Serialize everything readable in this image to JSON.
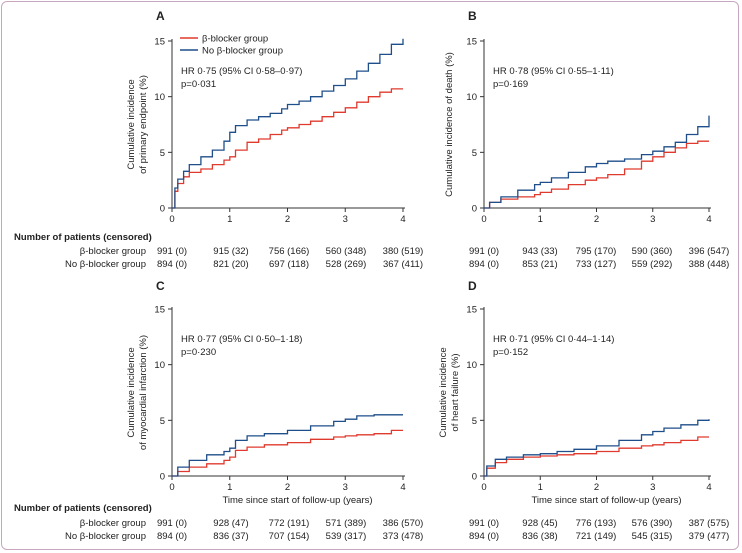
{
  "panels": [
    {
      "letter": "A",
      "ylabel": [
        "Cumulative incidence",
        "of primary endpoint (%)"
      ],
      "stat_lines": [
        "HR 0·75 (95% CI 0·58–0·97)",
        "p=0·031"
      ],
      "xlabel": "",
      "chart_data": {
        "type": "line",
        "xlim": [
          0,
          4
        ],
        "ylim": [
          0,
          15
        ],
        "xticks": [
          0,
          1,
          2,
          3,
          4
        ],
        "yticks": [
          0,
          5,
          10,
          15
        ],
        "series": [
          {
            "name": "β-blocker group",
            "color": "#e03a2f",
            "points": [
              [
                0,
                0
              ],
              [
                0.05,
                1.5
              ],
              [
                0.1,
                2.2
              ],
              [
                0.2,
                2.8
              ],
              [
                0.3,
                3.2
              ],
              [
                0.5,
                3.5
              ],
              [
                0.7,
                3.9
              ],
              [
                0.9,
                4.3
              ],
              [
                1.0,
                4.6
              ],
              [
                1.1,
                5.2
              ],
              [
                1.3,
                5.9
              ],
              [
                1.5,
                6.2
              ],
              [
                1.7,
                6.6
              ],
              [
                1.9,
                7.0
              ],
              [
                2.0,
                7.2
              ],
              [
                2.2,
                7.5
              ],
              [
                2.4,
                7.8
              ],
              [
                2.6,
                8.2
              ],
              [
                2.8,
                8.6
              ],
              [
                3.0,
                9.0
              ],
              [
                3.2,
                9.5
              ],
              [
                3.4,
                10.0
              ],
              [
                3.6,
                10.4
              ],
              [
                3.8,
                10.7
              ],
              [
                4.0,
                10.7
              ]
            ]
          },
          {
            "name": "No β-blocker group",
            "color": "#1f4f8a",
            "points": [
              [
                0,
                0
              ],
              [
                0.05,
                1.8
              ],
              [
                0.1,
                2.6
              ],
              [
                0.2,
                3.3
              ],
              [
                0.3,
                3.9
              ],
              [
                0.5,
                4.6
              ],
              [
                0.7,
                5.2
              ],
              [
                0.9,
                6.0
              ],
              [
                1.0,
                6.8
              ],
              [
                1.1,
                7.4
              ],
              [
                1.3,
                7.9
              ],
              [
                1.5,
                8.2
              ],
              [
                1.7,
                8.5
              ],
              [
                1.9,
                8.9
              ],
              [
                2.0,
                9.3
              ],
              [
                2.2,
                9.6
              ],
              [
                2.4,
                10.0
              ],
              [
                2.6,
                10.5
              ],
              [
                2.8,
                11.0
              ],
              [
                3.0,
                11.6
              ],
              [
                3.2,
                12.3
              ],
              [
                3.4,
                13.0
              ],
              [
                3.6,
                13.8
              ],
              [
                3.8,
                14.7
              ],
              [
                4.0,
                15.2
              ]
            ]
          }
        ]
      }
    },
    {
      "letter": "B",
      "ylabel": [
        "Cumulative incidence of death (%)"
      ],
      "stat_lines": [
        "HR 0·78 (95% CI 0·55–1·11)",
        "p=0·169"
      ],
      "xlabel": "",
      "chart_data": {
        "type": "line",
        "xlim": [
          0,
          4
        ],
        "ylim": [
          0,
          15
        ],
        "xticks": [
          0,
          1,
          2,
          3,
          4
        ],
        "yticks": [
          0,
          5,
          10,
          15
        ],
        "series": [
          {
            "name": "β-blocker group",
            "color": "#e03a2f",
            "points": [
              [
                0,
                0
              ],
              [
                0.1,
                0.5
              ],
              [
                0.3,
                0.8
              ],
              [
                0.6,
                1.0
              ],
              [
                0.9,
                1.2
              ],
              [
                1.0,
                1.4
              ],
              [
                1.2,
                1.7
              ],
              [
                1.5,
                2.1
              ],
              [
                1.8,
                2.5
              ],
              [
                2.0,
                2.7
              ],
              [
                2.2,
                3.0
              ],
              [
                2.5,
                3.5
              ],
              [
                2.8,
                4.2
              ],
              [
                3.0,
                4.6
              ],
              [
                3.2,
                5.0
              ],
              [
                3.4,
                5.4
              ],
              [
                3.6,
                5.8
              ],
              [
                3.8,
                6.0
              ],
              [
                4.0,
                6.0
              ]
            ]
          },
          {
            "name": "No β-blocker group",
            "color": "#1f4f8a",
            "points": [
              [
                0,
                0
              ],
              [
                0.1,
                0.5
              ],
              [
                0.3,
                1.0
              ],
              [
                0.6,
                1.6
              ],
              [
                0.9,
                2.1
              ],
              [
                1.0,
                2.3
              ],
              [
                1.2,
                2.7
              ],
              [
                1.5,
                3.2
              ],
              [
                1.8,
                3.7
              ],
              [
                2.0,
                4.0
              ],
              [
                2.2,
                4.2
              ],
              [
                2.5,
                4.4
              ],
              [
                2.8,
                4.8
              ],
              [
                3.0,
                5.1
              ],
              [
                3.2,
                5.5
              ],
              [
                3.4,
                5.9
              ],
              [
                3.6,
                6.6
              ],
              [
                3.8,
                7.3
              ],
              [
                4.0,
                8.3
              ]
            ]
          }
        ]
      }
    },
    {
      "letter": "C",
      "ylabel": [
        "Cumulative incidence",
        "of myocardial infarction (%)"
      ],
      "stat_lines": [
        "HR 0·77 (95% CI 0·50–1·18)",
        "p=0·230"
      ],
      "xlabel": "Time since start of follow-up (years)",
      "chart_data": {
        "type": "line",
        "xlim": [
          0,
          4
        ],
        "ylim": [
          0,
          15
        ],
        "xticks": [
          0,
          1,
          2,
          3,
          4
        ],
        "yticks": [
          0,
          5,
          10,
          15
        ],
        "series": [
          {
            "name": "β-blocker group",
            "color": "#e03a2f",
            "points": [
              [
                0,
                0
              ],
              [
                0.1,
                0.4
              ],
              [
                0.3,
                0.8
              ],
              [
                0.6,
                1.1
              ],
              [
                0.9,
                1.4
              ],
              [
                1.0,
                1.7
              ],
              [
                1.1,
                2.3
              ],
              [
                1.3,
                2.6
              ],
              [
                1.6,
                2.8
              ],
              [
                2.0,
                3.0
              ],
              [
                2.4,
                3.3
              ],
              [
                2.8,
                3.5
              ],
              [
                3.0,
                3.6
              ],
              [
                3.2,
                3.7
              ],
              [
                3.5,
                3.8
              ],
              [
                3.8,
                4.1
              ],
              [
                4.0,
                4.1
              ]
            ]
          },
          {
            "name": "No β-blocker group",
            "color": "#1f4f8a",
            "points": [
              [
                0,
                0
              ],
              [
                0.1,
                0.8
              ],
              [
                0.3,
                1.4
              ],
              [
                0.6,
                1.9
              ],
              [
                0.9,
                2.2
              ],
              [
                1.0,
                2.5
              ],
              [
                1.1,
                3.2
              ],
              [
                1.3,
                3.6
              ],
              [
                1.6,
                3.8
              ],
              [
                2.0,
                4.1
              ],
              [
                2.4,
                4.5
              ],
              [
                2.8,
                4.9
              ],
              [
                3.0,
                5.1
              ],
              [
                3.2,
                5.4
              ],
              [
                3.5,
                5.5
              ],
              [
                3.8,
                5.5
              ],
              [
                4.0,
                5.5
              ]
            ]
          }
        ]
      }
    },
    {
      "letter": "D",
      "ylabel": [
        "Cumulative incidence",
        "of heart failure (%)"
      ],
      "stat_lines": [
        "HR 0·71 (95% CI 0·44–1·14)",
        "p=0·152"
      ],
      "xlabel": "Time since start of follow-up (years)",
      "chart_data": {
        "type": "line",
        "xlim": [
          0,
          4
        ],
        "ylim": [
          0,
          15
        ],
        "xticks": [
          0,
          1,
          2,
          3,
          4
        ],
        "yticks": [
          0,
          5,
          10,
          15
        ],
        "series": [
          {
            "name": "β-blocker group",
            "color": "#e03a2f",
            "points": [
              [
                0,
                0
              ],
              [
                0.05,
                0.7
              ],
              [
                0.2,
                1.2
              ],
              [
                0.4,
                1.5
              ],
              [
                0.7,
                1.7
              ],
              [
                1.0,
                1.8
              ],
              [
                1.3,
                1.9
              ],
              [
                1.6,
                2.0
              ],
              [
                2.0,
                2.2
              ],
              [
                2.4,
                2.5
              ],
              [
                2.8,
                2.7
              ],
              [
                3.0,
                2.8
              ],
              [
                3.2,
                3.0
              ],
              [
                3.5,
                3.2
              ],
              [
                3.8,
                3.5
              ],
              [
                4.0,
                3.5
              ]
            ]
          },
          {
            "name": "No β-blocker group",
            "color": "#1f4f8a",
            "points": [
              [
                0,
                0
              ],
              [
                0.05,
                0.9
              ],
              [
                0.2,
                1.5
              ],
              [
                0.4,
                1.7
              ],
              [
                0.7,
                1.9
              ],
              [
                1.0,
                2.0
              ],
              [
                1.3,
                2.2
              ],
              [
                1.6,
                2.4
              ],
              [
                2.0,
                2.7
              ],
              [
                2.4,
                3.2
              ],
              [
                2.8,
                3.7
              ],
              [
                3.0,
                4.0
              ],
              [
                3.2,
                4.3
              ],
              [
                3.5,
                4.6
              ],
              [
                3.8,
                5.0
              ],
              [
                4.0,
                5.1
              ]
            ]
          }
        ]
      }
    }
  ],
  "legend": [
    "β-blocker group",
    "No β-blocker group"
  ],
  "at_risk": [
    {
      "heading": "Number of patients (censored)",
      "rows": [
        {
          "label": "β-blocker group",
          "left": [
            "991 (0)",
            "915 (32)",
            "756 (166)",
            "560 (348)",
            "380 (519)"
          ],
          "right": [
            "991 (0)",
            "943 (33)",
            "795 (170)",
            "590 (360)",
            "396 (547)"
          ]
        },
        {
          "label": "No β-blocker group",
          "left": [
            "894 (0)",
            "821 (20)",
            "697 (118)",
            "528 (269)",
            "367 (411)"
          ],
          "right": [
            "894 (0)",
            "853 (21)",
            "733 (127)",
            "559 (292)",
            "388 (448)"
          ]
        }
      ]
    },
    {
      "heading": "Number of patients (censored)",
      "rows": [
        {
          "label": "β-blocker group",
          "left": [
            "991 (0)",
            "928 (47)",
            "772 (191)",
            "571 (389)",
            "386 (570)"
          ],
          "right": [
            "991 (0)",
            "928 (45)",
            "776 (193)",
            "576 (390)",
            "387 (575)"
          ]
        },
        {
          "label": "No β-blocker group",
          "left": [
            "894 (0)",
            "836 (37)",
            "707 (154)",
            "539 (317)",
            "373 (478)"
          ],
          "right": [
            "894 (0)",
            "836 (38)",
            "721 (149)",
            "545 (315)",
            "379 (477)"
          ]
        }
      ]
    }
  ]
}
